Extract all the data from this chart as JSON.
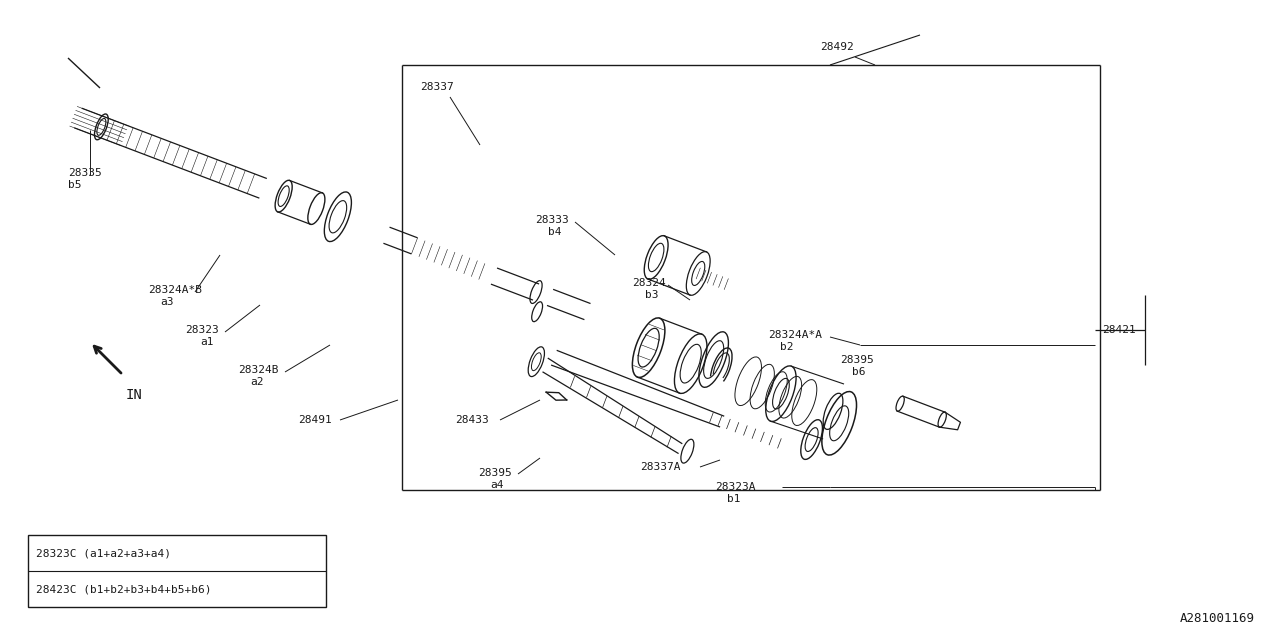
{
  "bg_color": "#ffffff",
  "line_color": "#1a1a1a",
  "fig_width": 12.8,
  "fig_height": 6.4,
  "diagram_id": "A281001169",
  "legend_lines": [
    "28323C (a1+a2+a3+a4)",
    "28423C (b1+b2+b3+b4+b5+b6)"
  ]
}
